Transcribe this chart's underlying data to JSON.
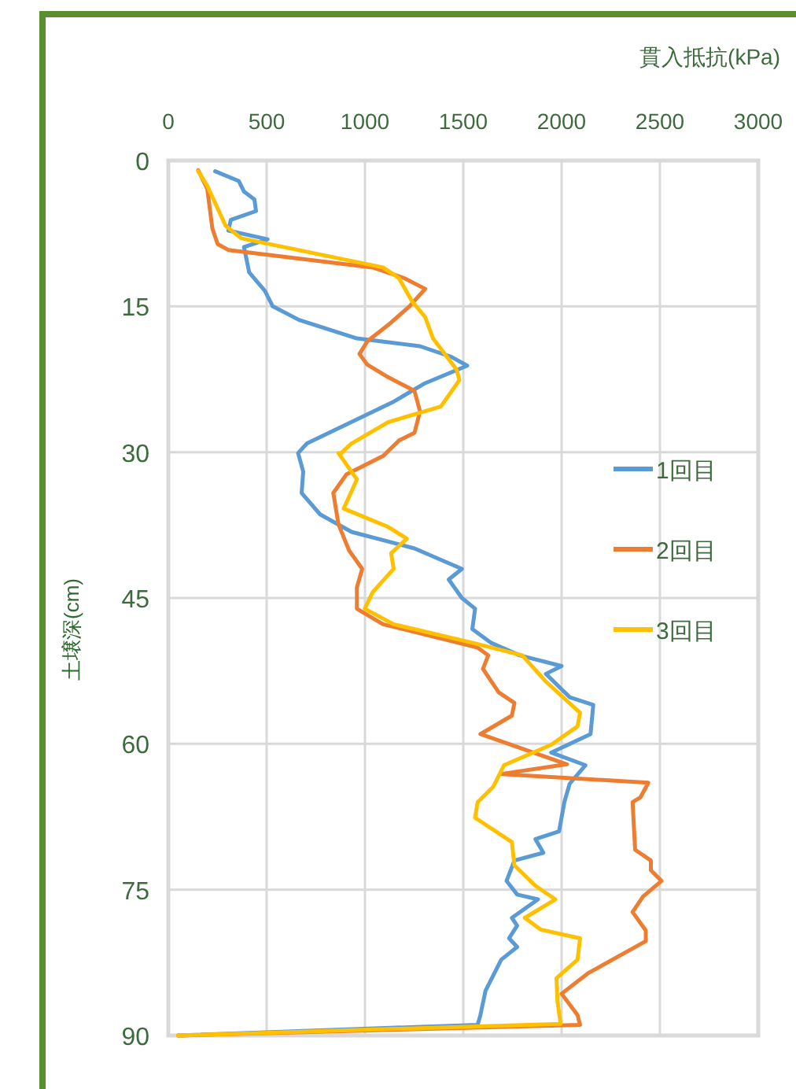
{
  "chart_data": {
    "type": "line",
    "xlabel": "貫入抵抗(kPa)",
    "ylabel": "土壌深(cm)",
    "xlim": [
      0,
      3000
    ],
    "xticks": [
      0,
      500,
      1000,
      1500,
      2000,
      2500,
      3000
    ],
    "ylim": [
      90,
      0
    ],
    "yticks": [
      0,
      15,
      30,
      45,
      60,
      75,
      90
    ],
    "grid": true,
    "legend": "right",
    "marker": "none",
    "line_style": "solid",
    "series": [
      {
        "name": "1回目",
        "color": "#5b9bd5",
        "x": [
          238,
          358,
          385,
          438,
          446,
          318,
          305,
          505,
          385,
          411,
          491,
          531,
          665,
          959,
          1280,
          1440,
          1520,
          1306,
          1146,
          932,
          705,
          660,
          686,
          678,
          772,
          932,
          1252,
          1493,
          1426,
          1493,
          1560,
          1546,
          1640,
          1787,
          2000,
          1920,
          2041,
          2161,
          2147,
          1947,
          2121,
          2041,
          2014,
          1987,
          1867,
          1907,
          1760,
          1720,
          1774,
          1880,
          1747,
          1774,
          1733,
          1774,
          1693,
          1613,
          1587,
          1573,
          50
        ],
        "values": [
          1.1,
          2.1,
          3.2,
          4.0,
          5.2,
          6.1,
          7.2,
          8.1,
          8.9,
          11.5,
          13.4,
          15.0,
          16.4,
          18.3,
          19.1,
          20.2,
          21.1,
          22.9,
          24.8,
          26.9,
          29.1,
          30.1,
          32.0,
          34.2,
          36.4,
          38.2,
          39.9,
          42.0,
          43.1,
          45.0,
          46.1,
          48.2,
          49.6,
          50.9,
          52.0,
          52.8,
          55.2,
          56.0,
          59.0,
          60.9,
          62.2,
          64.1,
          66.0,
          69.0,
          69.8,
          71.2,
          72.0,
          74.1,
          75.5,
          76.0,
          77.9,
          78.7,
          80.0,
          80.9,
          82.2,
          85.4,
          87.9,
          88.9,
          90.0
        ]
      },
      {
        "name": "2回目",
        "color": "#ed7d31",
        "x": [
          152,
          198,
          224,
          251,
          305,
          1039,
          1200,
          1306,
          1226,
          1119,
          1012,
          972,
          1012,
          1119,
          1252,
          1280,
          1252,
          1173,
          1092,
          905,
          839,
          865,
          919,
          986,
          959,
          959,
          1092,
          1413,
          1573,
          1627,
          1600,
          1680,
          1760,
          1747,
          1587,
          2027,
          1693,
          2441,
          2401,
          2361,
          2374,
          2454,
          2454,
          2508,
          2414,
          2361,
          2428,
          2428,
          2134,
          2000,
          2081,
          2094,
          50
        ],
        "values": [
          1.0,
          2.9,
          7.0,
          8.6,
          9.2,
          11.0,
          12.1,
          13.2,
          15.0,
          16.9,
          18.6,
          19.9,
          21.0,
          22.3,
          23.7,
          25.8,
          28.0,
          28.8,
          30.4,
          32.3,
          34.2,
          37.4,
          40.1,
          42.0,
          43.9,
          46.1,
          47.7,
          49.3,
          50.1,
          50.9,
          52.3,
          54.7,
          55.8,
          57.1,
          59.0,
          62.1,
          63.1,
          64.0,
          65.5,
          66.0,
          70.9,
          72.0,
          73.0,
          74.1,
          75.7,
          77.3,
          79.2,
          80.3,
          83.6,
          85.7,
          87.9,
          88.9,
          90.0
        ]
      },
      {
        "name": "3回目",
        "color": "#ffc000",
        "x": [
          152,
          198,
          291,
          371,
          1092,
          1173,
          1240,
          1306,
          1346,
          1466,
          1480,
          1386,
          1119,
          932,
          879,
          865,
          959,
          892,
          1119,
          1213,
          1133,
          1146,
          1039,
          999,
          1146,
          1546,
          1800,
          1920,
          2094,
          2081,
          1947,
          1707,
          1653,
          1573,
          1560,
          1747,
          1760,
          1867,
          1968,
          1813,
          1893,
          2094,
          2081,
          1974,
          1979,
          1995,
          50
        ],
        "values": [
          1.1,
          2.6,
          6.7,
          8.0,
          11.0,
          12.1,
          14.5,
          16.1,
          18.3,
          21.5,
          22.6,
          25.3,
          26.9,
          29.1,
          30.1,
          30.1,
          32.8,
          35.8,
          37.7,
          38.9,
          40.4,
          42.0,
          44.4,
          46.1,
          47.7,
          49.6,
          50.9,
          53.6,
          56.8,
          58.2,
          60.1,
          62.2,
          64.4,
          66.0,
          67.6,
          70.1,
          72.5,
          74.6,
          76.0,
          77.9,
          79.1,
          80.0,
          82.2,
          84.1,
          86.5,
          88.8,
          90.0
        ]
      }
    ]
  }
}
